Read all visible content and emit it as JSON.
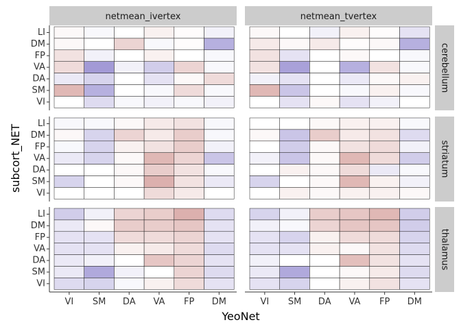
{
  "chart_data": {
    "type": "heatmap",
    "xlabel": "YeoNet",
    "ylabel": "subcort_NET",
    "x_categories": [
      "VI",
      "SM",
      "DA",
      "VA",
      "FP",
      "DM"
    ],
    "y_categories": [
      "LI",
      "DM",
      "FP",
      "VA",
      "DA",
      "SM",
      "VI"
    ],
    "column_facets": [
      "netmean_ivertex",
      "netmean_tvertex"
    ],
    "row_facets": [
      "cerebellum",
      "striatum",
      "thalamus"
    ],
    "colors": {
      "negative": "#7b6fc4",
      "neutral": "#ffffff",
      "positive": "#c0706b"
    },
    "color_range": [
      -1,
      1
    ],
    "legend": "none",
    "panels": [
      {
        "column": "netmean_ivertex",
        "row": "cerebellum",
        "values": [
          [
            0.05,
            -0.05,
            0.0,
            0.1,
            0.02,
            -0.1
          ],
          [
            0.05,
            0.0,
            0.3,
            -0.05,
            0.02,
            -0.55
          ],
          [
            0.2,
            -0.1,
            0.0,
            0.1,
            0.0,
            -0.05
          ],
          [
            0.25,
            -0.7,
            -0.1,
            -0.35,
            0.3,
            -0.05
          ],
          [
            -0.15,
            -0.3,
            0.0,
            -0.2,
            0.05,
            0.25
          ],
          [
            0.5,
            -0.55,
            0.0,
            -0.05,
            0.25,
            -0.05
          ],
          [
            0.0,
            -0.25,
            -0.05,
            -0.1,
            -0.05,
            -0.1
          ]
        ]
      },
      {
        "column": "netmean_tvertex",
        "row": "cerebellum",
        "values": [
          [
            0.05,
            0.0,
            -0.1,
            0.1,
            0.02,
            -0.2
          ],
          [
            0.15,
            0.05,
            0.15,
            0.02,
            0.05,
            -0.55
          ],
          [
            0.2,
            -0.2,
            0.0,
            0.05,
            0.0,
            -0.05
          ],
          [
            0.2,
            -0.65,
            0.0,
            -0.55,
            0.2,
            -0.05
          ],
          [
            -0.1,
            -0.2,
            0.0,
            -0.15,
            0.05,
            0.1
          ],
          [
            0.5,
            -0.4,
            0.0,
            -0.05,
            0.1,
            -0.05
          ],
          [
            0.0,
            -0.2,
            0.05,
            -0.2,
            -0.1,
            0.0
          ]
        ]
      },
      {
        "column": "netmean_ivertex",
        "row": "striatum",
        "values": [
          [
            -0.05,
            -0.05,
            0.05,
            0.15,
            0.2,
            -0.05
          ],
          [
            0.05,
            -0.3,
            0.3,
            0.15,
            0.35,
            -0.05
          ],
          [
            -0.05,
            -0.3,
            0.1,
            0.2,
            0.35,
            -0.1
          ],
          [
            -0.15,
            -0.3,
            0.05,
            0.5,
            0.3,
            -0.4
          ],
          [
            0.0,
            0.0,
            0.05,
            0.35,
            0.2,
            -0.05
          ],
          [
            -0.3,
            0.0,
            0.05,
            0.55,
            0.2,
            -0.15
          ],
          [
            0.0,
            0.0,
            0.0,
            0.25,
            0.15,
            0.0
          ]
        ]
      },
      {
        "column": "netmean_tvertex",
        "row": "striatum",
        "values": [
          [
            0.0,
            0.0,
            0.05,
            0.1,
            0.1,
            -0.05
          ],
          [
            0.05,
            -0.4,
            0.35,
            0.15,
            0.2,
            -0.25
          ],
          [
            0.0,
            -0.35,
            0.05,
            0.2,
            0.25,
            -0.1
          ],
          [
            -0.1,
            -0.4,
            0.05,
            0.5,
            0.25,
            -0.35
          ],
          [
            0.0,
            0.1,
            0.05,
            0.25,
            -0.15,
            -0.05
          ],
          [
            -0.3,
            0.0,
            0.05,
            0.5,
            0.1,
            -0.1
          ],
          [
            0.0,
            0.1,
            0.05,
            0.1,
            0.1,
            0.05
          ]
        ]
      },
      {
        "column": "netmean_ivertex",
        "row": "thalamus",
        "values": [
          [
            -0.35,
            -0.1,
            0.3,
            0.35,
            0.55,
            -0.25
          ],
          [
            -0.15,
            0.05,
            0.35,
            0.35,
            0.4,
            -0.2
          ],
          [
            -0.2,
            -0.2,
            0.25,
            0.25,
            0.3,
            -0.2
          ],
          [
            -0.2,
            -0.2,
            0.1,
            0.15,
            0.25,
            -0.25
          ],
          [
            -0.15,
            -0.1,
            0.0,
            0.4,
            0.3,
            -0.2
          ],
          [
            -0.15,
            -0.6,
            -0.1,
            0.0,
            0.3,
            -0.25
          ],
          [
            -0.25,
            -0.3,
            -0.05,
            0.1,
            0.25,
            -0.2
          ]
        ]
      },
      {
        "column": "netmean_tvertex",
        "row": "thalamus",
        "values": [
          [
            -0.3,
            -0.1,
            0.35,
            0.4,
            0.5,
            -0.35
          ],
          [
            -0.1,
            -0.05,
            0.3,
            0.4,
            0.4,
            -0.35
          ],
          [
            -0.2,
            -0.3,
            0.1,
            0.25,
            0.25,
            -0.3
          ],
          [
            -0.2,
            -0.2,
            0.1,
            0.05,
            0.2,
            -0.25
          ],
          [
            -0.1,
            0.0,
            0.0,
            0.45,
            0.2,
            -0.2
          ],
          [
            -0.15,
            -0.6,
            0.0,
            0.05,
            0.15,
            -0.25
          ],
          [
            -0.2,
            -0.3,
            0.0,
            0.1,
            0.2,
            -0.2
          ]
        ]
      }
    ]
  }
}
